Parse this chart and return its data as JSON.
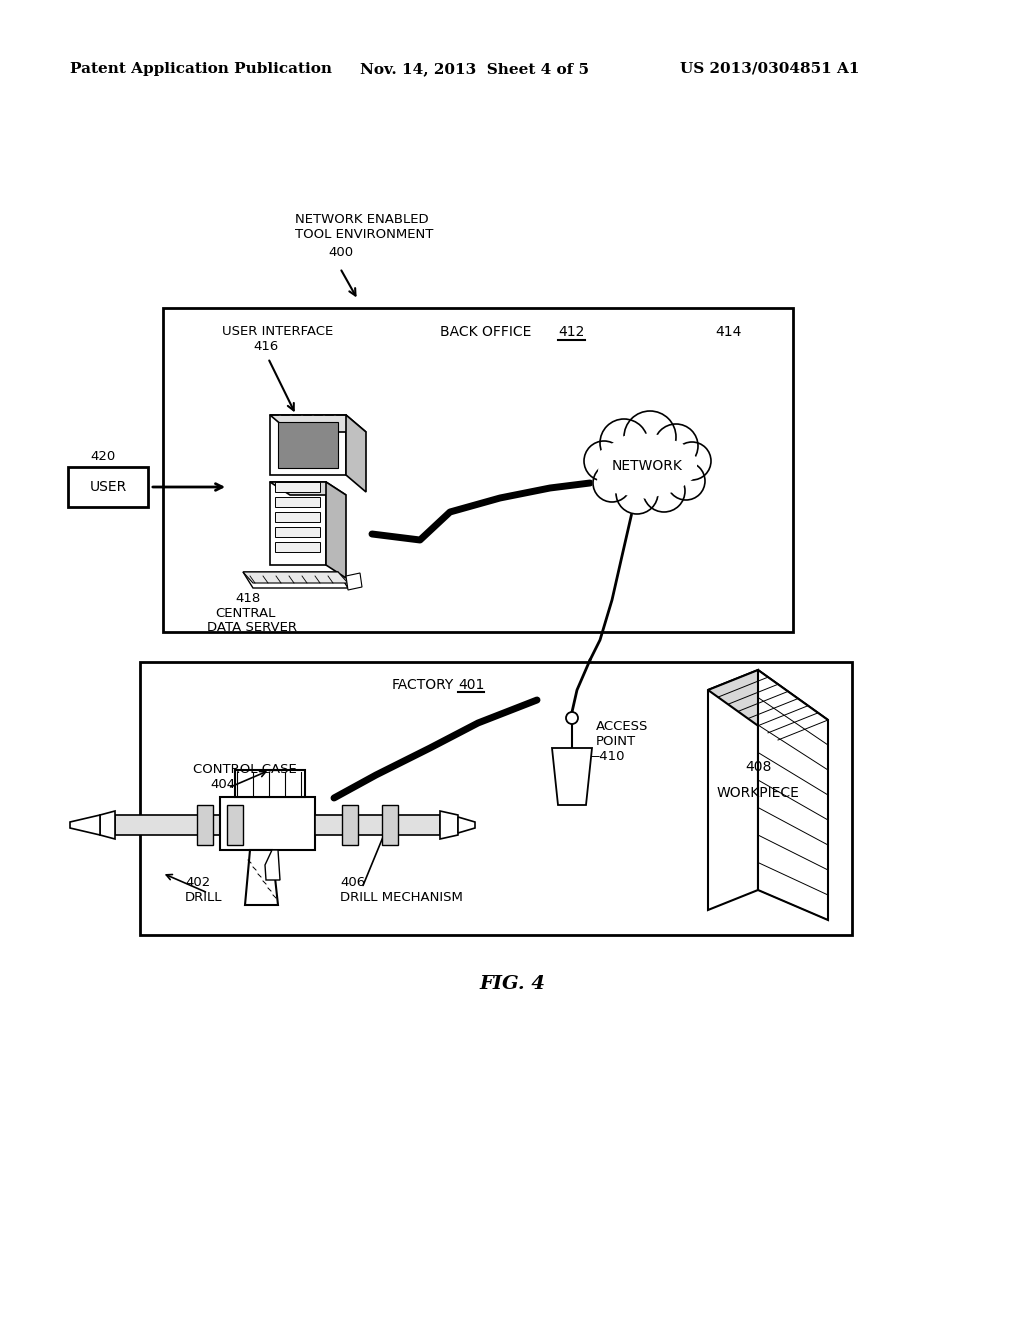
{
  "bg_color": "#ffffff",
  "header_left": "Patent Application Publication",
  "header_mid": "Nov. 14, 2013  Sheet 4 of 5",
  "header_right": "US 2013/0304851 A1",
  "fig_label": "FIG. 4"
}
